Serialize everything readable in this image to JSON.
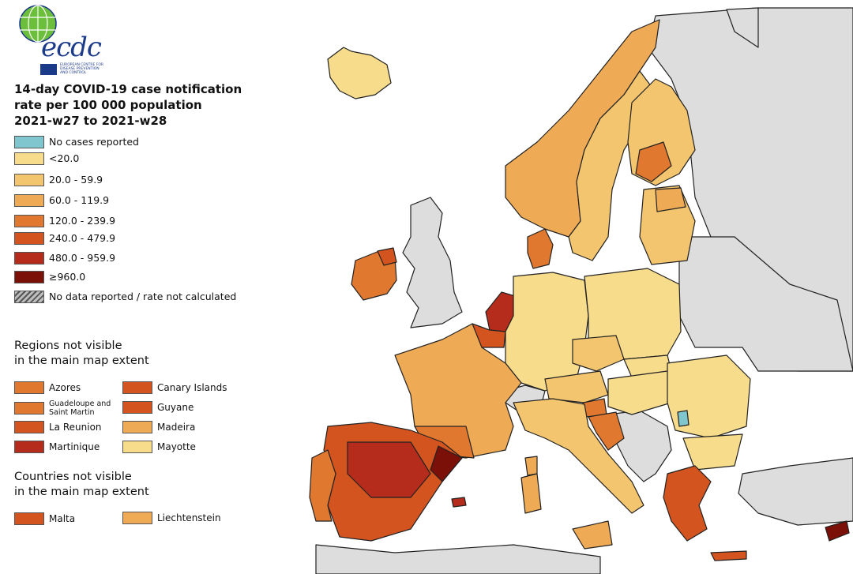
{
  "logo": {
    "text": "ecdc",
    "subtitle": "EUROPEAN CENTRE FOR DISEASE PREVENTION AND CONTROL"
  },
  "title": {
    "line1": "14-day COVID-19 case notification",
    "line2": "rate per 100 000 population",
    "line3": "2021-w27 to 2021-w28"
  },
  "legend": [
    {
      "label": "No cases reported",
      "color": "#7fc6cf"
    },
    {
      "label": "<20.0",
      "color": "#f7dc8c"
    },
    {
      "label": "20.0 - 59.9",
      "color": "#f3c56f"
    },
    {
      "label": "60.0 - 119.9",
      "color": "#eeaa55"
    },
    {
      "label": "120.0 - 239.9",
      "color": "#e0782f"
    },
    {
      "label": "240.0 - 479.9",
      "color": "#d4541f"
    },
    {
      "label": "480.0 - 959.9",
      "color": "#b52c1c"
    },
    {
      "label": "≥960.0",
      "color": "#7a1008"
    },
    {
      "label": "No data reported / rate not calculated",
      "color": "#bdbdbd"
    }
  ],
  "regions_section": {
    "title_line1": "Regions not visible",
    "title_line2": "in the main map extent",
    "items": [
      {
        "label": "Azores",
        "color": "#e0782f"
      },
      {
        "label": "Canary Islands",
        "color": "#d4541f"
      },
      {
        "label": "Guadeloupe and Saint Martin",
        "color": "#e0782f"
      },
      {
        "label": "Guyane",
        "color": "#d4541f"
      },
      {
        "label": "La Reunion",
        "color": "#d4541f"
      },
      {
        "label": "Madeira",
        "color": "#eeaa55"
      },
      {
        "label": "Martinique",
        "color": "#b52c1c"
      },
      {
        "label": "Mayotte",
        "color": "#f7dc8c"
      }
    ]
  },
  "countries_section": {
    "title_line1": "Countries not visible",
    "title_line2": "in the main map extent",
    "items": [
      {
        "label": "Malta",
        "color": "#d4541f"
      },
      {
        "label": "Liechtenstein",
        "color": "#eeaa55"
      }
    ]
  },
  "map": {
    "sea_color": "#ffffff",
    "non_eu_color": "#dddddd",
    "border_color": "#222222"
  }
}
